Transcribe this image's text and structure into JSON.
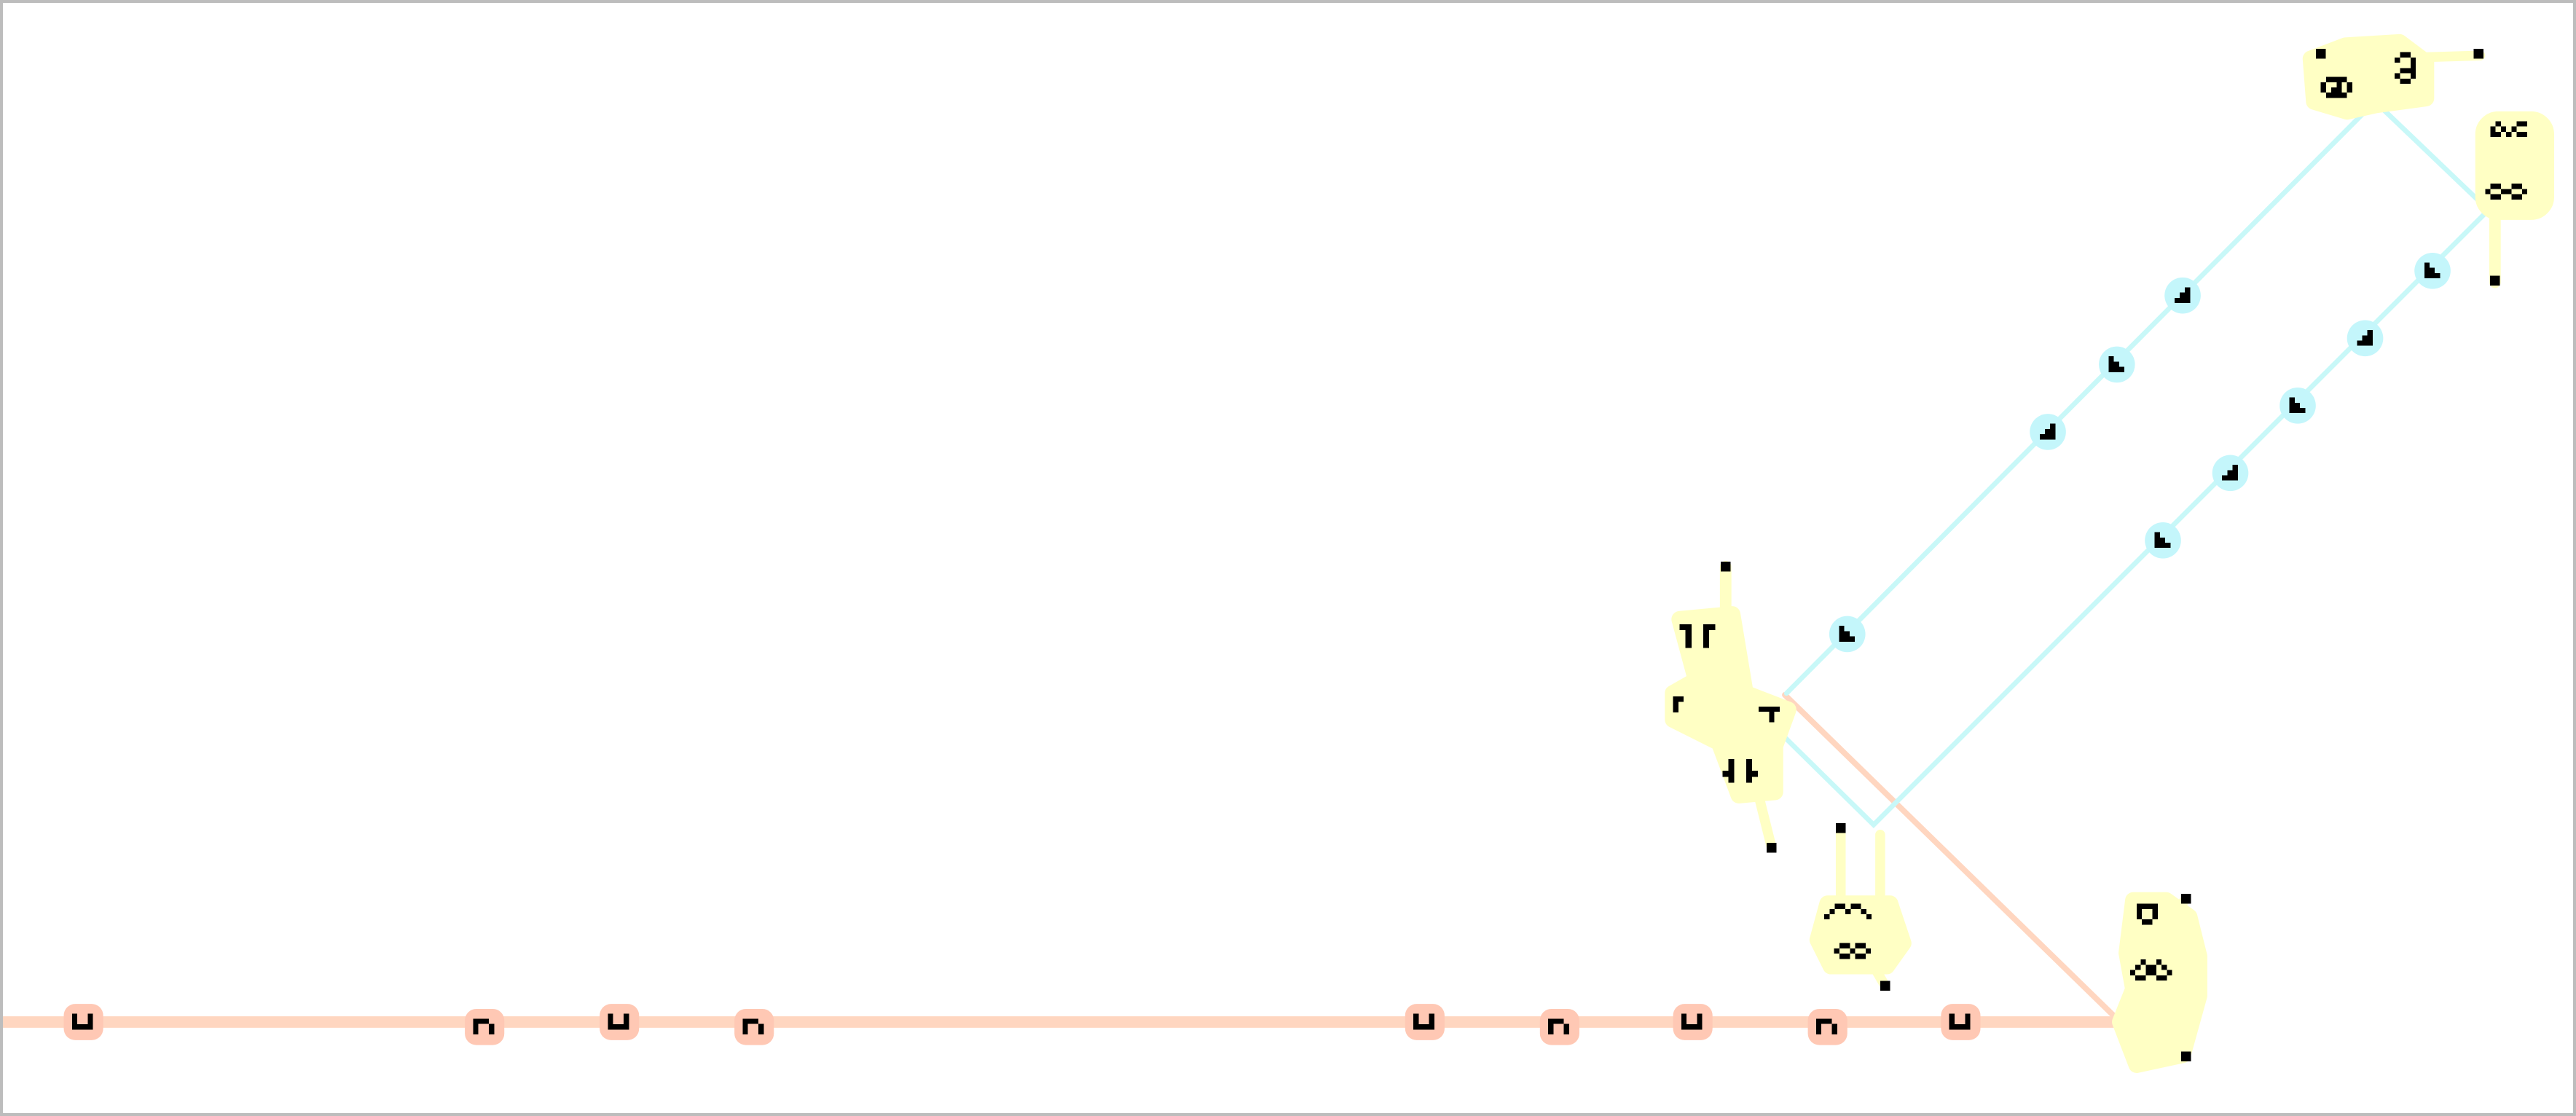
{
  "colors": {
    "background": "#ffffff",
    "frame": "#bdbdbd",
    "orange_track": "#ffd6c0",
    "cyan_track": "#c8f8f8",
    "component_fill": "#ffffc4",
    "cell": "#000000",
    "orange_glider_halo": "#ffc8b4",
    "cyan_glider_halo": "#c4f6fb"
  },
  "icons": {
    "orange_glider": "glider-icon",
    "cyan_glider": "glider-icon",
    "reflector": "reflector-icon",
    "eater": "eater-icon",
    "block": "block-icon",
    "still_life": "still-life-icon"
  }
}
